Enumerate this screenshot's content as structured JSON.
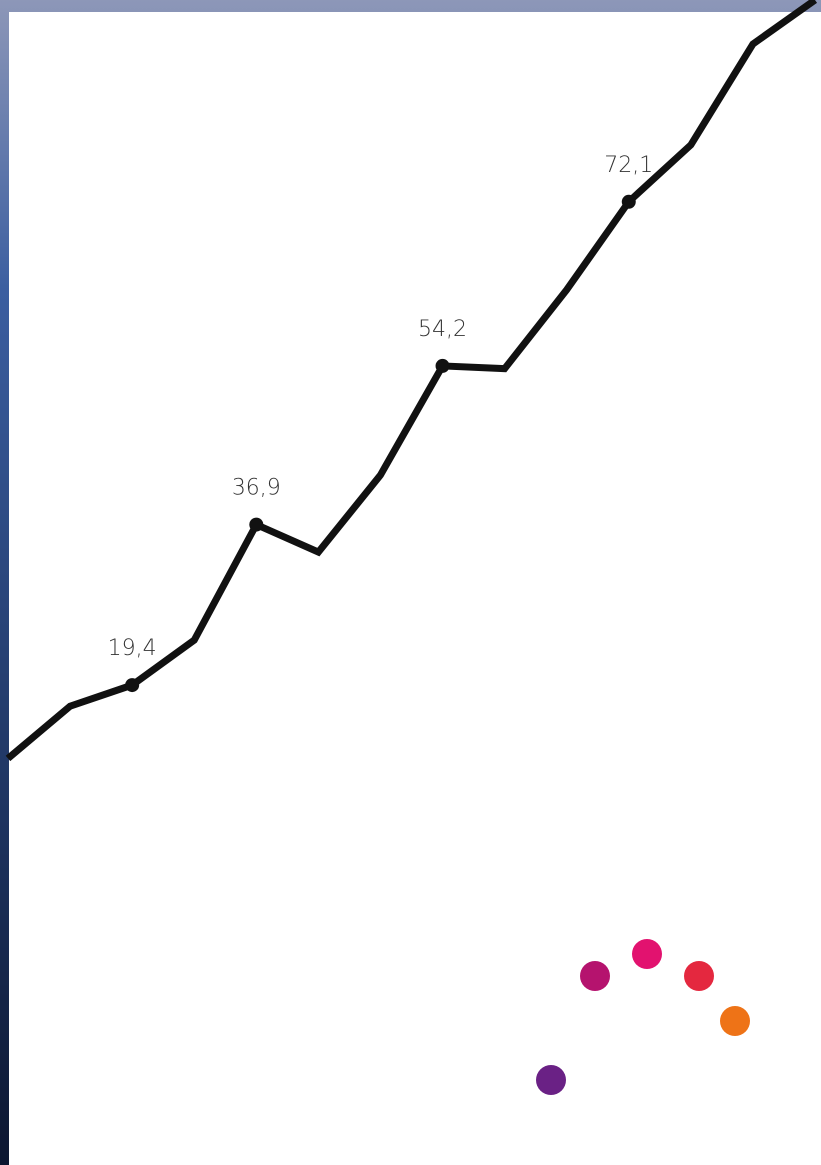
{
  "chart_data": {
    "type": "line",
    "categories": [
      null,
      null,
      null,
      null,
      null,
      null,
      null,
      null,
      null,
      null,
      null,
      null,
      null,
      null
    ],
    "series": [
      {
        "color": "#111111",
        "values": [
          11.4,
          17.1,
          19.4,
          24.3,
          36.9,
          33.9,
          42.3,
          54.2,
          53.9,
          62.5,
          72.1,
          78.3,
          89.3,
          94.1
        ],
        "value_labels": [
          null,
          null,
          "19,4",
          null,
          "36,9",
          null,
          null,
          "54,2",
          null,
          null,
          "72,1",
          null,
          null,
          null
        ]
      }
    ],
    "ylim": [
      0,
      94.1
    ]
  }
}
